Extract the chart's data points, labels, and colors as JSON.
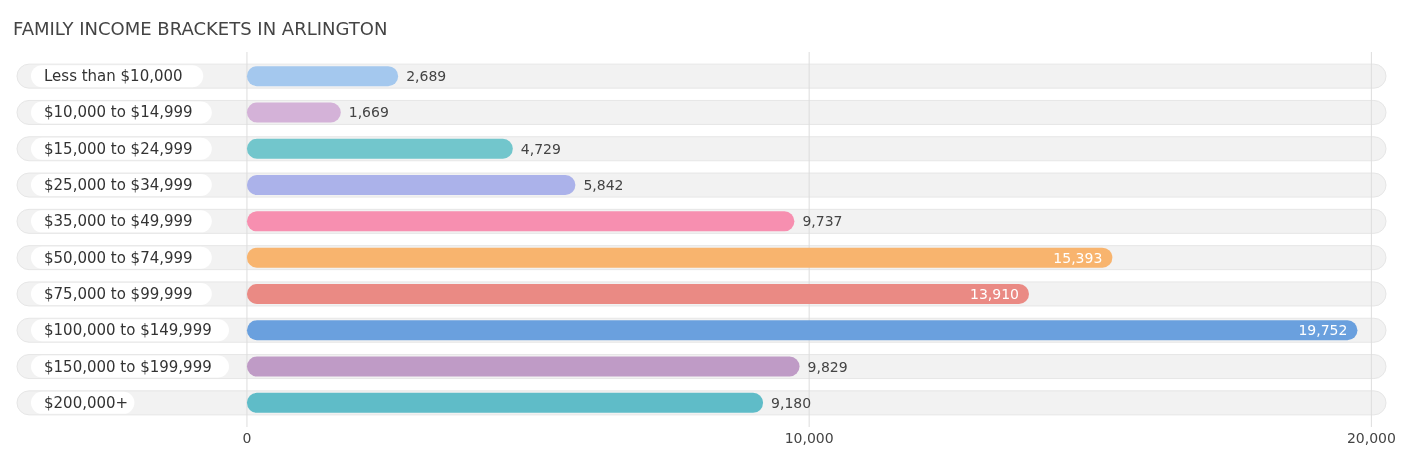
{
  "chart_data": {
    "type": "bar",
    "orientation": "horizontal",
    "title": "FAMILY INCOME BRACKETS IN ARLINGTON",
    "categories": [
      "Less than $10,000",
      "$10,000 to $14,999",
      "$15,000 to $24,999",
      "$25,000 to $34,999",
      "$35,000 to $49,999",
      "$50,000 to $74,999",
      "$75,000 to $99,999",
      "$100,000 to $149,999",
      "$150,000 to $199,999",
      "$200,000+"
    ],
    "values": [
      2689,
      1669,
      4729,
      5842,
      9737,
      15393,
      13910,
      19752,
      9829,
      9180
    ],
    "colors": [
      "#a4c8ee",
      "#d4b2d8",
      "#72c6cc",
      "#abb2ea",
      "#f78fb0",
      "#f8b46e",
      "#ea8a84",
      "#6aa0de",
      "#bf9bc6",
      "#5fbcc8"
    ],
    "xlim": [
      -4090,
      20260
    ],
    "xticks": [
      0,
      {
        "value": 10000,
        "label": "10,000"
      },
      {
        "value": 20000,
        "label": "20,000"
      }
    ],
    "value_labels": [
      "2,689",
      "1,669",
      "4,729",
      "5,842",
      "9,737",
      "15,393",
      "13,910",
      "19,752",
      "9,829",
      "9,180"
    ],
    "grid": "x"
  }
}
